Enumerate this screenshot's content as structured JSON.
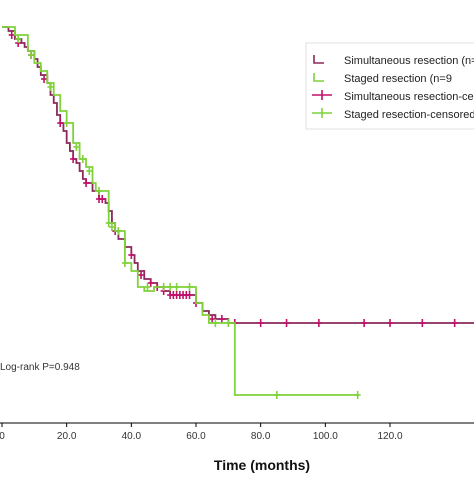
{
  "chart_data": {
    "type": "line",
    "title": "",
    "xlabel": "Time (months)",
    "ylabel": "",
    "xlim": [
      0,
      150
    ],
    "ylim": [
      0,
      1.0
    ],
    "x_ticks": [
      "0",
      "20.0",
      "40.0",
      "60.0",
      "80.0",
      "100.0",
      "120.0"
    ],
    "x_tick_values": [
      0,
      20,
      40,
      60,
      80,
      100,
      120
    ],
    "grid": false,
    "legend_position": "top-right",
    "annotation": "Log-rank P=0.948",
    "legend": [
      {
        "label": "Simultaneous resection (n=",
        "color": "#8b2a5a",
        "marker": "line"
      },
      {
        "label": "Staged resection (n=9",
        "color": "#7fd23a",
        "marker": "line"
      },
      {
        "label": "Simultaneous resection-censored",
        "color": "#c0106a",
        "marker": "cross"
      },
      {
        "label": "Staged resection-censored",
        "color": "#7fd23a",
        "marker": "cross"
      }
    ],
    "series": [
      {
        "color": "#8b2a5a",
        "censor_color": "#c0106a",
        "x": [
          0,
          2,
          4,
          6,
          7,
          8,
          10,
          11,
          12,
          14,
          15,
          16,
          17,
          18,
          19,
          20,
          21,
          22,
          23,
          24,
          25,
          26,
          28,
          30,
          32,
          33,
          34,
          35,
          36,
          38,
          40,
          41,
          42,
          44,
          46,
          48,
          50,
          52,
          55,
          58,
          60,
          62,
          64,
          66,
          68,
          70,
          72,
          150
        ],
        "y": [
          0.99,
          0.98,
          0.96,
          0.95,
          0.94,
          0.93,
          0.91,
          0.89,
          0.87,
          0.85,
          0.82,
          0.8,
          0.77,
          0.75,
          0.73,
          0.7,
          0.68,
          0.66,
          0.65,
          0.63,
          0.61,
          0.6,
          0.58,
          0.56,
          0.55,
          0.53,
          0.5,
          0.48,
          0.46,
          0.44,
          0.42,
          0.4,
          0.38,
          0.36,
          0.35,
          0.34,
          0.33,
          0.32,
          0.32,
          0.32,
          0.3,
          0.28,
          0.27,
          0.26,
          0.26,
          0.25,
          0.25,
          0.25
        ],
        "censored_x": [
          3,
          5,
          9,
          13,
          18,
          22,
          26,
          30,
          31,
          35,
          40,
          43,
          46,
          48,
          50,
          52,
          53,
          54,
          55,
          56,
          57,
          58,
          60,
          65,
          68,
          72,
          80,
          88,
          98,
          112,
          120,
          130,
          140
        ],
        "censored_y": [
          0.97,
          0.95,
          0.92,
          0.86,
          0.75,
          0.66,
          0.6,
          0.56,
          0.56,
          0.48,
          0.42,
          0.37,
          0.35,
          0.34,
          0.33,
          0.32,
          0.32,
          0.32,
          0.32,
          0.32,
          0.32,
          0.32,
          0.3,
          0.26,
          0.26,
          0.25,
          0.25,
          0.25,
          0.25,
          0.25,
          0.25,
          0.25,
          0.25
        ]
      },
      {
        "color": "#7fd23a",
        "censor_color": "#7fd23a",
        "x": [
          0,
          4,
          8,
          10,
          12,
          14,
          16,
          18,
          20,
          22,
          24,
          26,
          28,
          29,
          32,
          33,
          35,
          37,
          38,
          40,
          42,
          44,
          47,
          49,
          52,
          56,
          60,
          62,
          64,
          66,
          70,
          72,
          110
        ],
        "y": [
          0.99,
          0.97,
          0.93,
          0.9,
          0.88,
          0.85,
          0.82,
          0.78,
          0.75,
          0.7,
          0.66,
          0.64,
          0.6,
          0.58,
          0.58,
          0.5,
          0.48,
          0.48,
          0.4,
          0.38,
          0.34,
          0.33,
          0.34,
          0.34,
          0.34,
          0.34,
          0.3,
          0.27,
          0.25,
          0.25,
          0.25,
          0.07,
          0.07
        ],
        "censored_x": [
          5,
          9,
          15,
          20,
          23,
          25,
          27,
          30,
          33,
          34,
          36,
          38,
          45,
          50,
          52,
          54,
          58,
          66,
          70,
          85,
          110
        ],
        "censored_y": [
          0.96,
          0.92,
          0.84,
          0.75,
          0.69,
          0.66,
          0.63,
          0.58,
          0.5,
          0.49,
          0.48,
          0.4,
          0.34,
          0.34,
          0.34,
          0.34,
          0.34,
          0.25,
          0.25,
          0.07,
          0.07
        ]
      }
    ]
  }
}
